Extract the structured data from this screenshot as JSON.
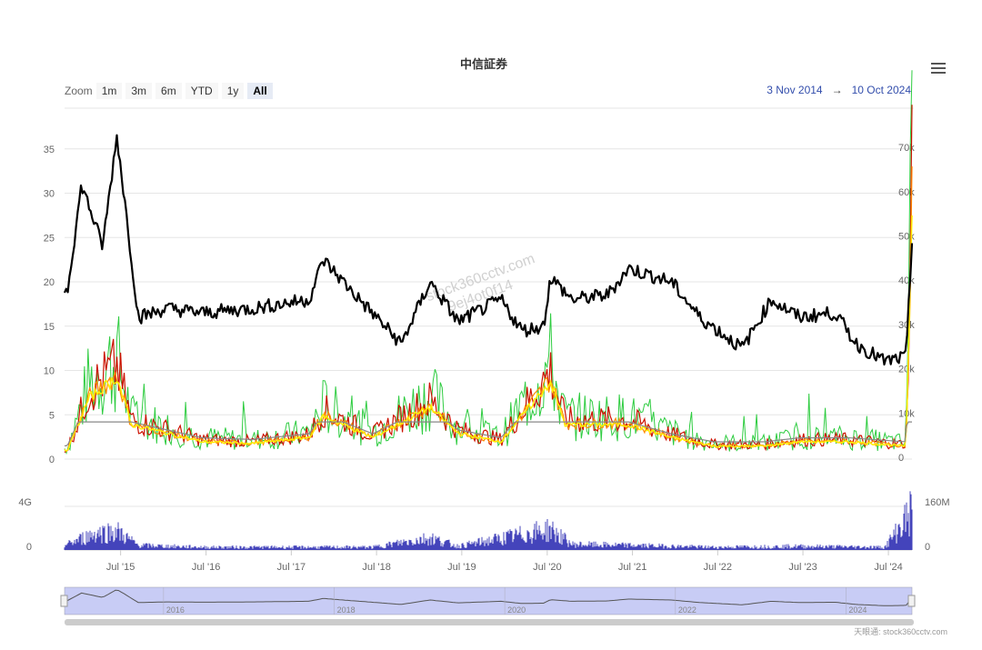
{
  "title": "中信証券",
  "zoom": {
    "label": "Zoom",
    "buttons": [
      "1m",
      "3m",
      "6m",
      "YTD",
      "1y",
      "All"
    ],
    "active": "All"
  },
  "range": {
    "from": "3 Nov 2014",
    "arrow": "→",
    "to": "10 Oct 2024"
  },
  "watermark": [
    "stock360cctv.com",
    "9ej4ot0f14"
  ],
  "credit": "天眼通: stock360cctv.com",
  "colors": {
    "price": "#000000",
    "green": "#2ecc40",
    "red": "#cc1100",
    "orange": "#ff8a00",
    "yellow": "#ffee00",
    "grey": "#888888",
    "volume": "#4444bb",
    "navigator": "#c8ccf5"
  },
  "chart_data": {
    "type": "line",
    "x_axis": {
      "ticks": [
        "Jul '15",
        "Jul '16",
        "Jul '17",
        "Jul '18",
        "Jul '19",
        "Jul '20",
        "Jul '21",
        "Jul '22",
        "Jul '23",
        "Jul '24"
      ]
    },
    "y_left": {
      "ticks": [
        "0",
        "5",
        "10",
        "15",
        "20",
        "25",
        "30",
        "35"
      ],
      "range": [
        0,
        36
      ]
    },
    "y_right": {
      "ticks": [
        "0",
        "10k",
        "20k",
        "30k",
        "40k",
        "50k",
        "60k",
        "70k"
      ],
      "range": [
        0,
        70000
      ]
    },
    "volume_axis": {
      "left_ticks": [
        "0",
        "4G"
      ],
      "right_ticks": [
        "0",
        "160M"
      ]
    },
    "navigator_ticks": [
      "2016",
      "2018",
      "2020",
      "2022",
      "2024"
    ],
    "price_series": {
      "x": [
        "2014-11",
        "2015-01",
        "2015-04",
        "2015-06",
        "2015-07",
        "2015-09",
        "2016-01",
        "2016-06",
        "2017-01",
        "2017-09",
        "2017-11",
        "2018-03",
        "2018-10",
        "2019-02",
        "2019-06",
        "2019-12",
        "2020-03",
        "2020-06",
        "2020-07",
        "2020-10",
        "2021-03",
        "2021-06",
        "2021-12",
        "2022-04",
        "2022-10",
        "2023-02",
        "2023-06",
        "2023-11",
        "2024-02",
        "2024-06",
        "2024-09",
        "2024-10"
      ],
      "values": [
        19,
        31,
        24,
        36.5,
        30,
        16,
        17,
        16.5,
        17,
        18,
        22.5,
        19,
        13,
        20,
        15.5,
        18,
        14.5,
        15,
        20.5,
        18,
        18.5,
        21.5,
        20,
        16,
        12.5,
        18,
        16,
        16.5,
        13,
        11,
        11.5,
        27
      ]
    },
    "oscillator_series": {
      "x": [
        "2014-11",
        "2015-02",
        "2015-06",
        "2015-08",
        "2016-01",
        "2016-06",
        "2017-01",
        "2017-09",
        "2017-11",
        "2018-06",
        "2019-02",
        "2019-06",
        "2019-12",
        "2020-07",
        "2020-09",
        "2021-06",
        "2021-12",
        "2022-06",
        "2023-01",
        "2023-06",
        "2024-01",
        "2024-09",
        "2024-10"
      ],
      "values": [
        1,
        7,
        9.5,
        4,
        3,
        2,
        1.8,
        2.5,
        5,
        2.5,
        6,
        3,
        2,
        9,
        4,
        4,
        2.5,
        1.5,
        1.5,
        2,
        2,
        1.5,
        35
      ]
    },
    "volume_series": {
      "x": [
        "2014-11",
        "2015-03",
        "2015-06",
        "2015-09",
        "2016-06",
        "2017-06",
        "2018-06",
        "2019-02",
        "2019-06",
        "2020-07",
        "2020-10",
        "2021-06",
        "2022-06",
        "2023-06",
        "2024-06",
        "2024-10"
      ],
      "values_G": [
        0.6,
        1.8,
        2,
        0.5,
        0.3,
        0.3,
        0.3,
        1.3,
        0.4,
        2.2,
        0.6,
        0.5,
        0.3,
        0.4,
        0.3,
        4.3
      ]
    }
  }
}
